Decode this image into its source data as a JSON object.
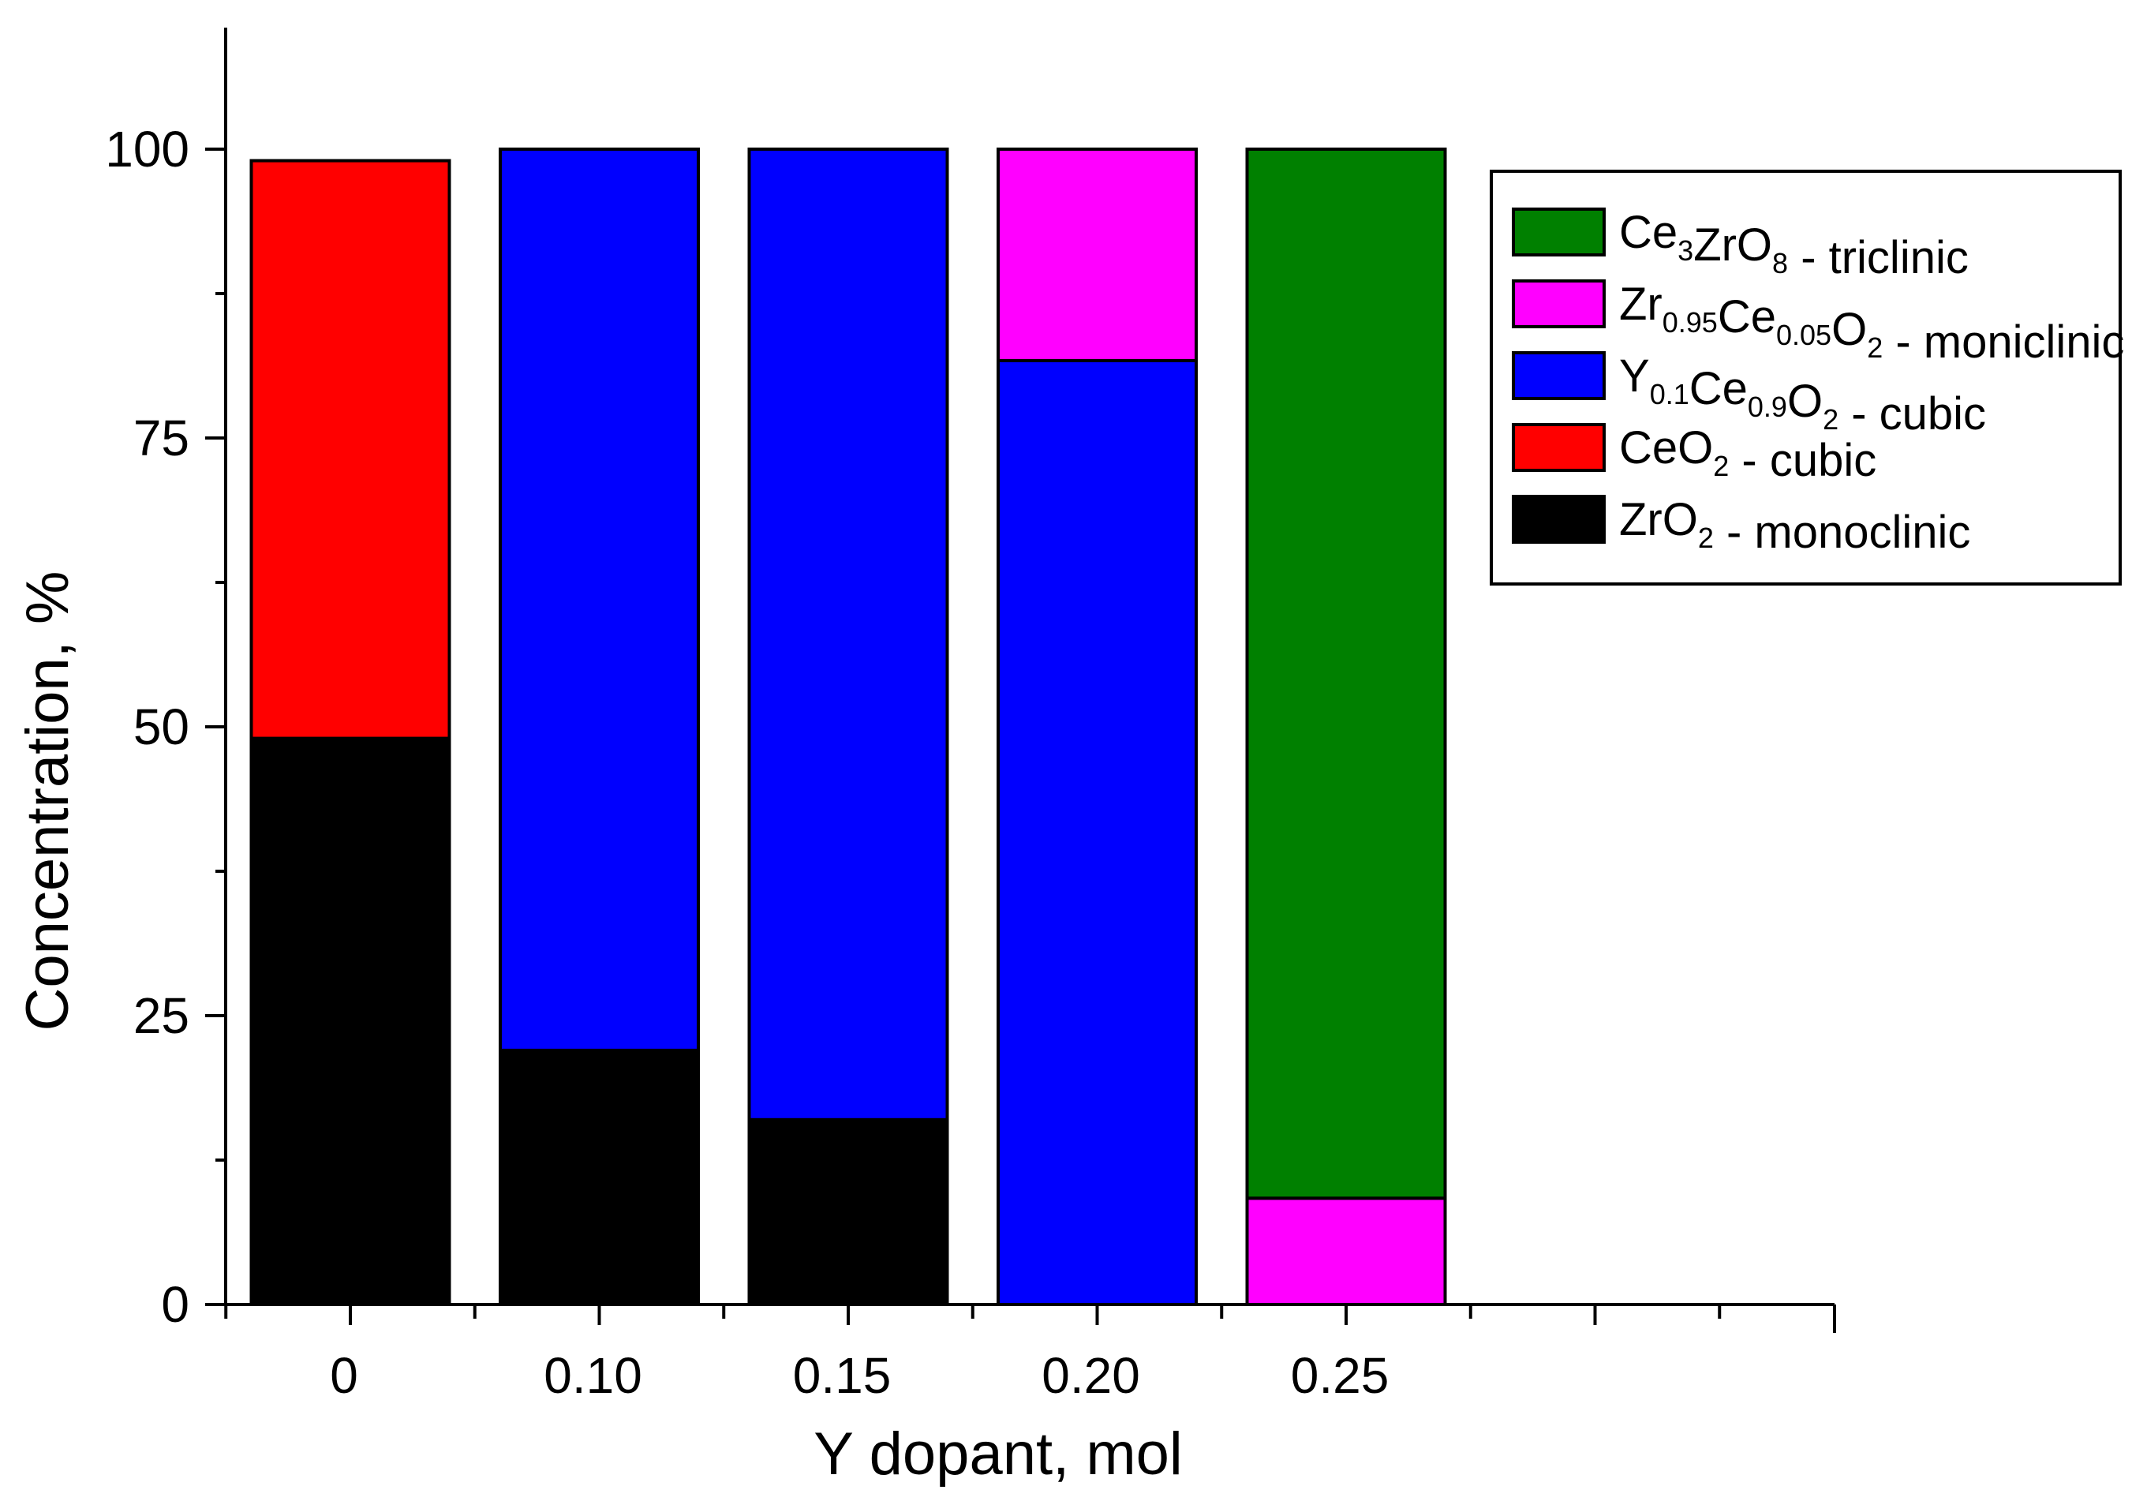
{
  "chart_data": {
    "type": "bar",
    "stacked": true,
    "xlabel": "Y dopant, mol",
    "ylabel": "Concentration, %",
    "ylim": [
      0,
      110
    ],
    "yticks": [
      "0",
      "25",
      "50",
      "75",
      "100"
    ],
    "categories": [
      "0",
      "0.10",
      "0.15",
      "0.20",
      "0.25"
    ],
    "series": [
      {
        "name": "ZrO2 - monoclinic",
        "color": "#000000",
        "values": [
          49,
          22,
          16,
          0,
          0
        ]
      },
      {
        "name": "CeO2 - cubic",
        "color": "#ff0000",
        "values": [
          50,
          0,
          0,
          0,
          0
        ]
      },
      {
        "name": "Y0.1Ce0.9O2 - cubic",
        "color": "#0000ff",
        "values": [
          0,
          78,
          84,
          81.7,
          0
        ]
      },
      {
        "name": "Zr0.95Ce0.05O2 - moniclinic",
        "color": "#ff00ff",
        "values": [
          0,
          0,
          0,
          18.3,
          9.2
        ]
      },
      {
        "name": "Ce3ZrO8 - triclinic",
        "color": "#008000",
        "values": [
          0,
          0,
          0,
          0,
          90.8
        ]
      }
    ],
    "legend": {
      "position": "top-right",
      "entries": [
        {
          "color": "#008000",
          "parts": [
            [
              "Ce",
              ""
            ],
            [
              "3",
              "sub"
            ],
            [
              "ZrO",
              ""
            ],
            [
              "8",
              "sub"
            ],
            [
              " - triclinic",
              ""
            ]
          ]
        },
        {
          "color": "#ff00ff",
          "parts": [
            [
              "Zr",
              ""
            ],
            [
              "0.95",
              "sub"
            ],
            [
              "Ce",
              ""
            ],
            [
              "0.05",
              "sub"
            ],
            [
              "O",
              ""
            ],
            [
              "2",
              "sub"
            ],
            [
              " - moniclinic",
              ""
            ]
          ]
        },
        {
          "color": "#0000ff",
          "parts": [
            [
              "Y",
              ""
            ],
            [
              "0.1",
              "sub"
            ],
            [
              "Ce",
              ""
            ],
            [
              "0.9",
              "sub"
            ],
            [
              "O",
              ""
            ],
            [
              "2",
              "sub"
            ],
            [
              " - cubic",
              ""
            ]
          ]
        },
        {
          "color": "#ff0000",
          "parts": [
            [
              "CeO",
              ""
            ],
            [
              "2",
              "sub"
            ],
            [
              " - cubic",
              ""
            ]
          ]
        },
        {
          "color": "#000000",
          "parts": [
            [
              "ZrO",
              ""
            ],
            [
              "2",
              "sub"
            ],
            [
              " - monoclinic",
              ""
            ]
          ]
        }
      ]
    }
  }
}
